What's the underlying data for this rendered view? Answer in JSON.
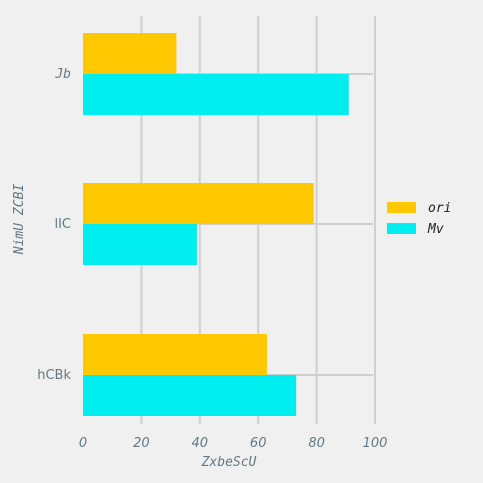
{
  "chart_data": {
    "type": "bar",
    "orientation": "horizontal",
    "categories": [
      "Jb",
      "lIC",
      "hCBk"
    ],
    "series": [
      {
        "name": "ori",
        "values": [
          32,
          79,
          63
        ],
        "color": "#ffc800"
      },
      {
        "name": "Mv",
        "values": [
          91,
          39,
          73
        ],
        "color": "#00eef0"
      }
    ],
    "xlabel": "ZxbeScU",
    "ylabel": "NimU ZCBI",
    "xlim": [
      0,
      100
    ],
    "xticks": [
      "0",
      "20",
      "40",
      "60",
      "80",
      "100"
    ],
    "grid": true,
    "legend_position": "right"
  }
}
